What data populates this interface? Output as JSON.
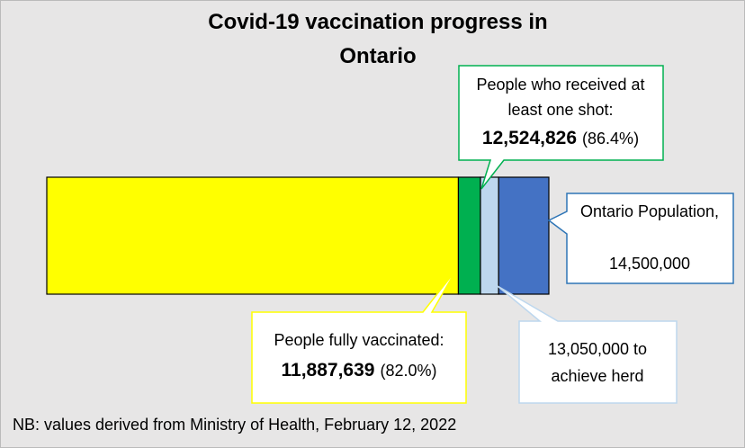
{
  "chart_data": {
    "type": "threshold-bar",
    "title": "Covid-19 vaccination progress in Ontario",
    "xlim": [
      0,
      14500000
    ],
    "segments": [
      {
        "name": "People fully vaccinated:",
        "color": "#ffff00",
        "value": 11887639,
        "value_label": "11,887,639",
        "share": 82.0,
        "share_label": "(82.0%)"
      },
      {
        "name": "People who received at least one shot:",
        "color": "#00b050",
        "value": 12524826,
        "value_label": "12,524,826",
        "share": 86.4,
        "share_label": "(86.4%)"
      },
      {
        "name": "to achieve herd",
        "color": "#bdd7ee",
        "value": 13050000,
        "value_label": "13,050,000"
      },
      {
        "name": "Ontario Population,",
        "color": "#4472c4",
        "value": 14500000,
        "value_label": "14,500,000"
      }
    ],
    "note": "NB: values derived from Ministry of Health, February 12, 2022"
  }
}
